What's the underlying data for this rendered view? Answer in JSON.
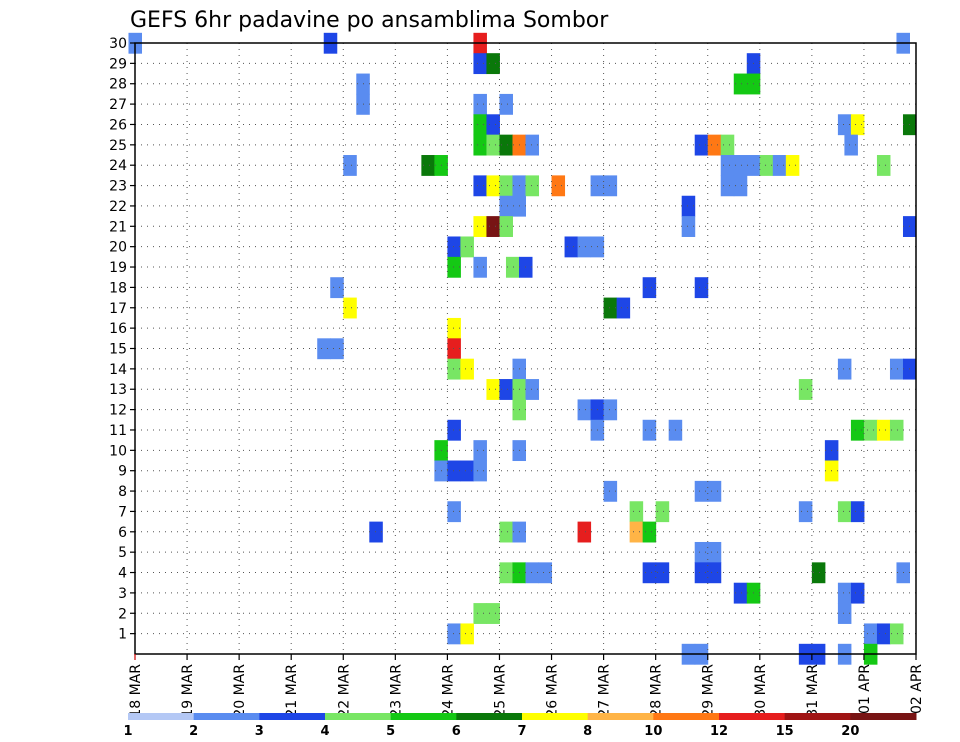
{
  "chart_data": {
    "type": "heatmap",
    "title": "GEFS 6hr padavine po ansamblima Sombor",
    "xlabel": "",
    "ylabel": "",
    "x_ticks": [
      "18 MAR",
      "19 MAR",
      "20 MAR",
      "21 MAR",
      "22 MAR",
      "23 MAR",
      "24 MAR",
      "25 MAR",
      "26 MAR",
      "27 MAR",
      "28 MAR",
      "29 MAR",
      "30 MAR",
      "31 MAR",
      "01 APR",
      "02 APR"
    ],
    "y_ticks": [
      1,
      2,
      3,
      4,
      5,
      6,
      7,
      8,
      9,
      10,
      11,
      12,
      13,
      14,
      15,
      16,
      17,
      18,
      19,
      20,
      21,
      22,
      23,
      24,
      25,
      26,
      27,
      28,
      29,
      30
    ],
    "xlim": [
      0,
      60
    ],
    "ylim": [
      0,
      30
    ],
    "grid": true,
    "colorbar": {
      "labels": [
        "1",
        "2",
        "3",
        "4",
        "5",
        "6",
        "7",
        "8",
        "10",
        "12",
        "15",
        "20"
      ],
      "colors": [
        "#b4c8f5",
        "#5a8cf0",
        "#1e46e6",
        "#78e664",
        "#14c814",
        "#0a780a",
        "#ffff00",
        "#ffb446",
        "#ff7814",
        "#e61e1e",
        "#a01414",
        "#781414"
      ]
    },
    "cells": [
      [
        30,
        0,
        1
      ],
      [
        30,
        15,
        2
      ],
      [
        30,
        26.5,
        9
      ],
      [
        30,
        59,
        1
      ],
      [
        29,
        26.5,
        2
      ],
      [
        29,
        27.5,
        5
      ],
      [
        29,
        47.5,
        2
      ],
      [
        28,
        17.5,
        1
      ],
      [
        28,
        46.5,
        4
      ],
      [
        28,
        47.5,
        4
      ],
      [
        27,
        17.5,
        1
      ],
      [
        27,
        26.5,
        1
      ],
      [
        27,
        28.5,
        1
      ],
      [
        26,
        26.5,
        4
      ],
      [
        26,
        27.5,
        2
      ],
      [
        26,
        54.5,
        1
      ],
      [
        26,
        55.5,
        6
      ],
      [
        26,
        59.5,
        5
      ],
      [
        25,
        26.5,
        4
      ],
      [
        25,
        27.5,
        3
      ],
      [
        25,
        28.5,
        5
      ],
      [
        25,
        29.5,
        8
      ],
      [
        25,
        30.5,
        1
      ],
      [
        25,
        43.5,
        2
      ],
      [
        25,
        44.5,
        8
      ],
      [
        25,
        45.5,
        3
      ],
      [
        25,
        55,
        1
      ],
      [
        24,
        16.5,
        1
      ],
      [
        24,
        22.5,
        5
      ],
      [
        24,
        23.5,
        4
      ],
      [
        24,
        45.5,
        1
      ],
      [
        24,
        46.5,
        1
      ],
      [
        24,
        47.5,
        1
      ],
      [
        24,
        48.5,
        3
      ],
      [
        24,
        49.5,
        1
      ],
      [
        24,
        50.5,
        6
      ],
      [
        24,
        57.5,
        3
      ],
      [
        23,
        26.5,
        2
      ],
      [
        23,
        27.5,
        6
      ],
      [
        23,
        28.5,
        3
      ],
      [
        23,
        29.5,
        1
      ],
      [
        23,
        30.5,
        3
      ],
      [
        23,
        32.5,
        8
      ],
      [
        23,
        35.5,
        1
      ],
      [
        23,
        36.5,
        1
      ],
      [
        23,
        45.5,
        1
      ],
      [
        23,
        46.5,
        1
      ],
      [
        22,
        28.5,
        1
      ],
      [
        22,
        29.5,
        1
      ],
      [
        22,
        42.5,
        2
      ],
      [
        21,
        26.5,
        6
      ],
      [
        21,
        27.5,
        11
      ],
      [
        21,
        28.5,
        3
      ],
      [
        21,
        42.5,
        1
      ],
      [
        21,
        59.5,
        2
      ],
      [
        20,
        24.5,
        2
      ],
      [
        20,
        25.5,
        3
      ],
      [
        20,
        33.5,
        2
      ],
      [
        20,
        34.5,
        1
      ],
      [
        20,
        35.5,
        1
      ],
      [
        19,
        24.5,
        4
      ],
      [
        19,
        26.5,
        1
      ],
      [
        19,
        29,
        3
      ],
      [
        19,
        30,
        2
      ],
      [
        18,
        15.5,
        1
      ],
      [
        18,
        39.5,
        2
      ],
      [
        18,
        43.5,
        2
      ],
      [
        17,
        16.5,
        6
      ],
      [
        17,
        36.5,
        5
      ],
      [
        17,
        37.5,
        2
      ],
      [
        16,
        24.5,
        6
      ],
      [
        15,
        14.5,
        1
      ],
      [
        15,
        15.5,
        1
      ],
      [
        15,
        24.5,
        9
      ],
      [
        14,
        24.5,
        3
      ],
      [
        14,
        25.5,
        6
      ],
      [
        14,
        29.5,
        1
      ],
      [
        14,
        54.5,
        1
      ],
      [
        14,
        58.5,
        1
      ],
      [
        14,
        59.5,
        2
      ],
      [
        13,
        27.5,
        6
      ],
      [
        13,
        28.5,
        2
      ],
      [
        13,
        29.5,
        3
      ],
      [
        13,
        30.5,
        1
      ],
      [
        13,
        51.5,
        3
      ],
      [
        12,
        29.5,
        3
      ],
      [
        12,
        34.5,
        1
      ],
      [
        12,
        35.5,
        2
      ],
      [
        12,
        36.5,
        1
      ],
      [
        11,
        24.5,
        2
      ],
      [
        11,
        35.5,
        1
      ],
      [
        11,
        39.5,
        1
      ],
      [
        11,
        41.5,
        1
      ],
      [
        11,
        55.5,
        4
      ],
      [
        11,
        56.5,
        3
      ],
      [
        11,
        57.5,
        6
      ],
      [
        11,
        58.5,
        3
      ],
      [
        10,
        23.5,
        4
      ],
      [
        10,
        26.5,
        1
      ],
      [
        10,
        29.5,
        1
      ],
      [
        10,
        53.5,
        2
      ],
      [
        9,
        23.5,
        1
      ],
      [
        9,
        24.5,
        2
      ],
      [
        9,
        25.5,
        2
      ],
      [
        9,
        26.5,
        1
      ],
      [
        9,
        53.5,
        6
      ],
      [
        8,
        36.5,
        1
      ],
      [
        8,
        43.5,
        1
      ],
      [
        8,
        44.5,
        1
      ],
      [
        7,
        24.5,
        1
      ],
      [
        7,
        38.5,
        3
      ],
      [
        7,
        40.5,
        3
      ],
      [
        7,
        51.5,
        1
      ],
      [
        7,
        54.5,
        3
      ],
      [
        7,
        55.5,
        2
      ],
      [
        6,
        18.5,
        2
      ],
      [
        6,
        28.5,
        3
      ],
      [
        6,
        29.5,
        1
      ],
      [
        6,
        34.5,
        9
      ],
      [
        6,
        38.5,
        7
      ],
      [
        6,
        39.5,
        4
      ],
      [
        5,
        43.5,
        1
      ],
      [
        5,
        44.5,
        1
      ],
      [
        4,
        28.5,
        3
      ],
      [
        4,
        29.5,
        4
      ],
      [
        4,
        30.5,
        1
      ],
      [
        4,
        31.5,
        1
      ],
      [
        4,
        39.5,
        2
      ],
      [
        4,
        40.5,
        2
      ],
      [
        4,
        43.5,
        2
      ],
      [
        4,
        44.5,
        2
      ],
      [
        4,
        52.5,
        5
      ],
      [
        4,
        59,
        1
      ],
      [
        3,
        46.5,
        2
      ],
      [
        3,
        47.5,
        4
      ],
      [
        3,
        54.5,
        1
      ],
      [
        3,
        55.5,
        2
      ],
      [
        2,
        26.5,
        3
      ],
      [
        2,
        27.5,
        3
      ],
      [
        2,
        54.5,
        1
      ],
      [
        1,
        24.5,
        1
      ],
      [
        1,
        25.5,
        6
      ],
      [
        1,
        56.5,
        1
      ],
      [
        1,
        57.5,
        2
      ],
      [
        1,
        58.5,
        3
      ],
      [
        0,
        42.5,
        1
      ],
      [
        0,
        43.5,
        1
      ],
      [
        0,
        51.5,
        2
      ],
      [
        0,
        52.5,
        2
      ],
      [
        0,
        54.5,
        1
      ],
      [
        0,
        56.5,
        4
      ]
    ]
  }
}
